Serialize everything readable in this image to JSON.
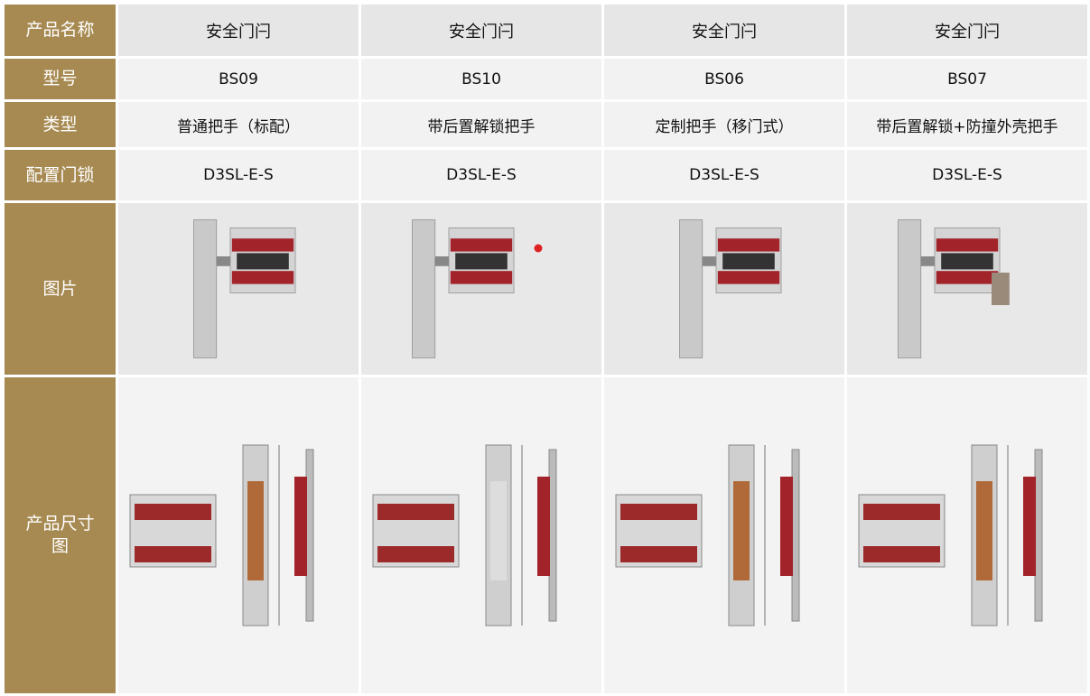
{
  "table": {
    "rows": [
      {
        "label": "产品名称",
        "cells": [
          "安全门闩",
          "安全门闩",
          "安全门闩",
          "安全门闩"
        ]
      },
      {
        "label": "型号",
        "cells": [
          "BS09",
          "BS10",
          "BS06",
          "BS07"
        ]
      },
      {
        "label": "类型",
        "cells": [
          "普通把手（标配）",
          "带后置解锁把手",
          "定制把手（移门式）",
          "带后置解锁+防撞外壳把手"
        ]
      },
      {
        "label": "配置门锁",
        "cells": [
          "D3SL-E-S",
          "D3SL-E-S",
          "D3SL-E-S",
          "D3SL-E-S"
        ]
      },
      {
        "label": "图片"
      },
      {
        "label": "产品尺寸图"
      }
    ]
  }
}
